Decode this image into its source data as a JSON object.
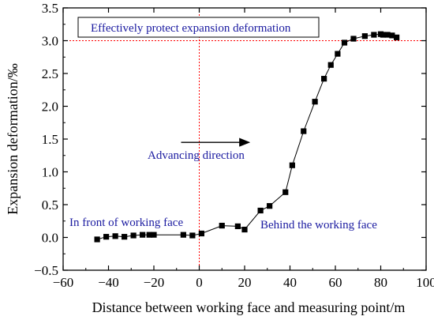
{
  "chart_data": {
    "type": "scatter",
    "xlabel": "Distance between working face and measuring point/m",
    "ylabel": "Expansion deformation/‰",
    "xlim": [
      -60,
      100
    ],
    "ylim": [
      -0.5,
      3.5
    ],
    "xticks": [
      -60,
      -40,
      -20,
      0,
      20,
      40,
      60,
      80,
      100
    ],
    "yticks": [
      -0.5,
      0.0,
      0.5,
      1.0,
      1.5,
      2.0,
      2.5,
      3.0,
      3.5
    ],
    "xtick_labels": [
      "−60",
      "−40",
      "−20",
      "0",
      "20",
      "40",
      "60",
      "80",
      "100"
    ],
    "ytick_labels": [
      "−0.5",
      "0.0",
      "0.5",
      "1.0",
      "1.5",
      "2.0",
      "2.5",
      "3.0",
      "3.5"
    ],
    "grid": false,
    "series": [
      {
        "marker": "square",
        "line": true,
        "color": "#000000",
        "x": [
          -45,
          -41,
          -37,
          -33,
          -29,
          -25,
          -22,
          -20,
          -7,
          -3,
          1,
          10,
          17,
          20,
          27,
          31,
          38,
          41,
          46,
          51,
          55,
          58,
          61,
          64,
          68,
          73,
          77,
          80,
          81,
          83,
          85,
          87
        ],
        "y": [
          -0.03,
          0.01,
          0.02,
          0.01,
          0.03,
          0.04,
          0.04,
          0.04,
          0.04,
          0.03,
          0.06,
          0.18,
          0.17,
          0.12,
          0.41,
          0.48,
          0.69,
          1.1,
          1.62,
          2.07,
          2.42,
          2.63,
          2.8,
          2.97,
          3.03,
          3.07,
          3.09,
          3.1,
          3.09,
          3.09,
          3.08,
          3.05
        ]
      }
    ],
    "reference_lines": [
      {
        "orientation": "horizontal",
        "value": 3.0,
        "color": "#ff0000",
        "style": "dotted"
      },
      {
        "orientation": "vertical",
        "value": 0,
        "color": "#ff0000",
        "style": "dotted"
      }
    ],
    "annotations": {
      "protect_box": "Effectively protect expansion deformation",
      "advancing": "Advancing direction",
      "front": "In front of working face",
      "behind": "Behind the working face"
    },
    "arrow": {
      "x_from": -8,
      "x_to": 22,
      "y": 1.45
    }
  }
}
